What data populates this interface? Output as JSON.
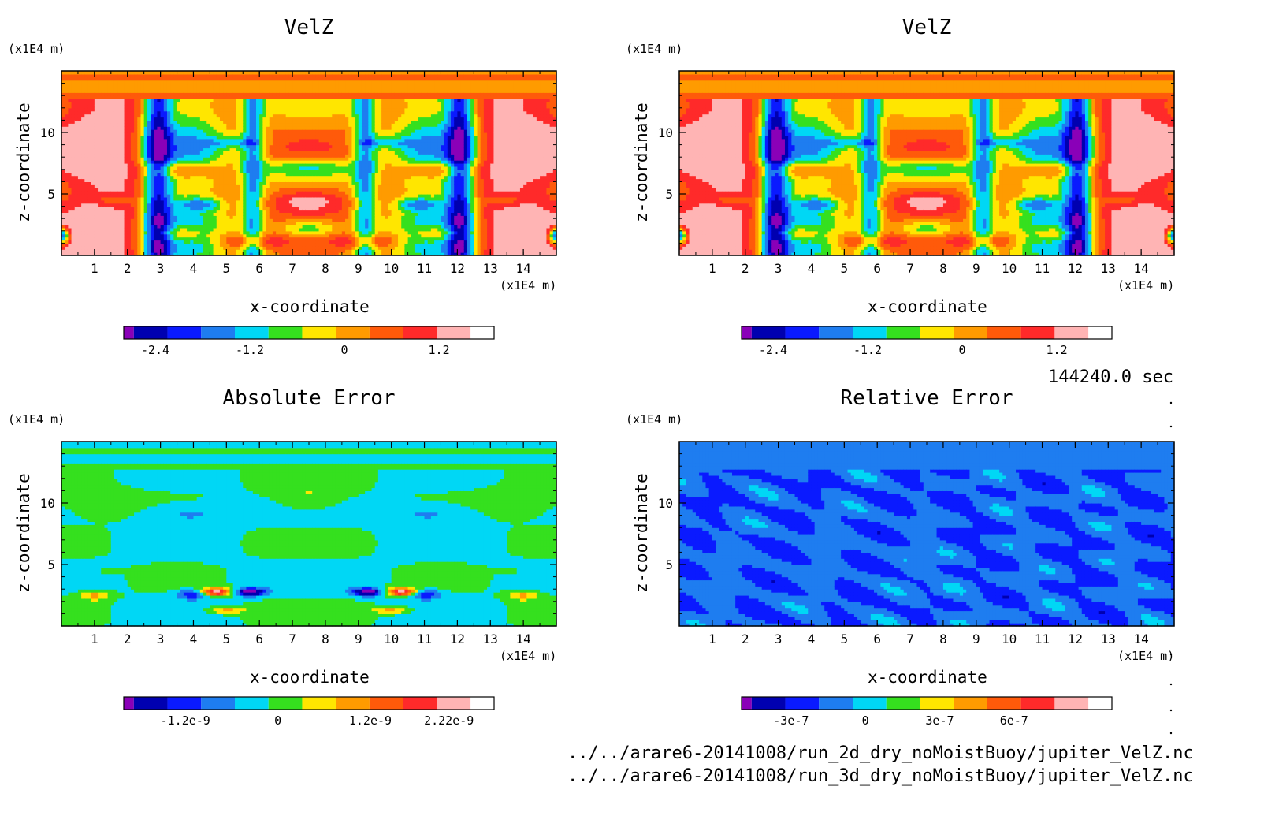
{
  "chart_data": [
    {
      "type": "heatmap",
      "title": "VelZ",
      "xlabel": "x-coordinate",
      "ylabel": "z-coordinate",
      "x_unit": "(x1E4 m)",
      "y_unit": "(x1E4 m)",
      "xlim": [
        0,
        15
      ],
      "ylim": [
        0,
        15
      ],
      "xticks": [
        "1",
        "2",
        "3",
        "4",
        "5",
        "6",
        "7",
        "8",
        "9",
        "10",
        "11",
        "12",
        "13",
        "14"
      ],
      "yticks": [
        "5",
        "10"
      ],
      "colorbar_ticks": [
        "-2.4",
        "-1.2",
        "0",
        "1.2"
      ],
      "colorbar_range": [
        -2.8,
        1.6
      ],
      "field": "velz",
      "palette": "std"
    },
    {
      "type": "heatmap",
      "title": "VelZ",
      "xlabel": "x-coordinate",
      "ylabel": "z-coordinate",
      "x_unit": "(x1E4 m)",
      "y_unit": "(x1E4 m)",
      "xlim": [
        0,
        15
      ],
      "ylim": [
        0,
        15
      ],
      "xticks": [
        "1",
        "2",
        "3",
        "4",
        "5",
        "6",
        "7",
        "8",
        "9",
        "10",
        "11",
        "12",
        "13",
        "14"
      ],
      "yticks": [
        "5",
        "10"
      ],
      "colorbar_ticks": [
        "-2.4",
        "-1.2",
        "0",
        "1.2"
      ],
      "colorbar_range": [
        -2.8,
        1.6
      ],
      "field": "velz",
      "palette": "std"
    },
    {
      "type": "heatmap",
      "title": "Absolute Error",
      "xlabel": "x-coordinate",
      "ylabel": "z-coordinate",
      "x_unit": "(x1E4 m)",
      "y_unit": "(x1E4 m)",
      "xlim": [
        0,
        15
      ],
      "ylim": [
        0,
        15
      ],
      "xticks": [
        "1",
        "2",
        "3",
        "4",
        "5",
        "6",
        "7",
        "8",
        "9",
        "10",
        "11",
        "12",
        "13",
        "14"
      ],
      "yticks": [
        "5",
        "10"
      ],
      "colorbar_ticks": [
        "-1.2e-9",
        "0",
        "1.2e-9",
        "2.22e-9"
      ],
      "colorbar_range": [
        -2.0,
        2.5
      ],
      "field": "abserr",
      "palette": "std"
    },
    {
      "type": "heatmap",
      "title": "Relative Error",
      "xlabel": "x-coordinate",
      "ylabel": "z-coordinate",
      "x_unit": "(x1E4 m)",
      "y_unit": "(x1E4 m)",
      "xlim": [
        0,
        15
      ],
      "ylim": [
        0,
        15
      ],
      "xticks": [
        "1",
        "2",
        "3",
        "4",
        "5",
        "6",
        "7",
        "8",
        "9",
        "10",
        "11",
        "12",
        "13",
        "14"
      ],
      "yticks": [
        "5",
        "10"
      ],
      "colorbar_ticks": [
        "-3e-7",
        "0",
        "3e-7",
        "6e-7"
      ],
      "colorbar_range": [
        -5,
        9
      ],
      "field": "relerr",
      "palette": "std"
    }
  ],
  "colors": {
    "levels": [
      "#8a00b8",
      "#0000b0",
      "#0a1aff",
      "#1e7df0",
      "#00d7f5",
      "#35e01e",
      "#ffe600",
      "#ff9b00",
      "#ff5a0a",
      "#ff2a2a",
      "#ffb4b4"
    ]
  },
  "time_label": "144240.0 sec",
  "file_lines": [
    "../../arare6-20141008/run_2d_dry_noMoistBuoy/jupiter_VelZ.nc",
    "../../arare6-20141008/run_3d_dry_noMoistBuoy/jupiter_VelZ.nc"
  ]
}
